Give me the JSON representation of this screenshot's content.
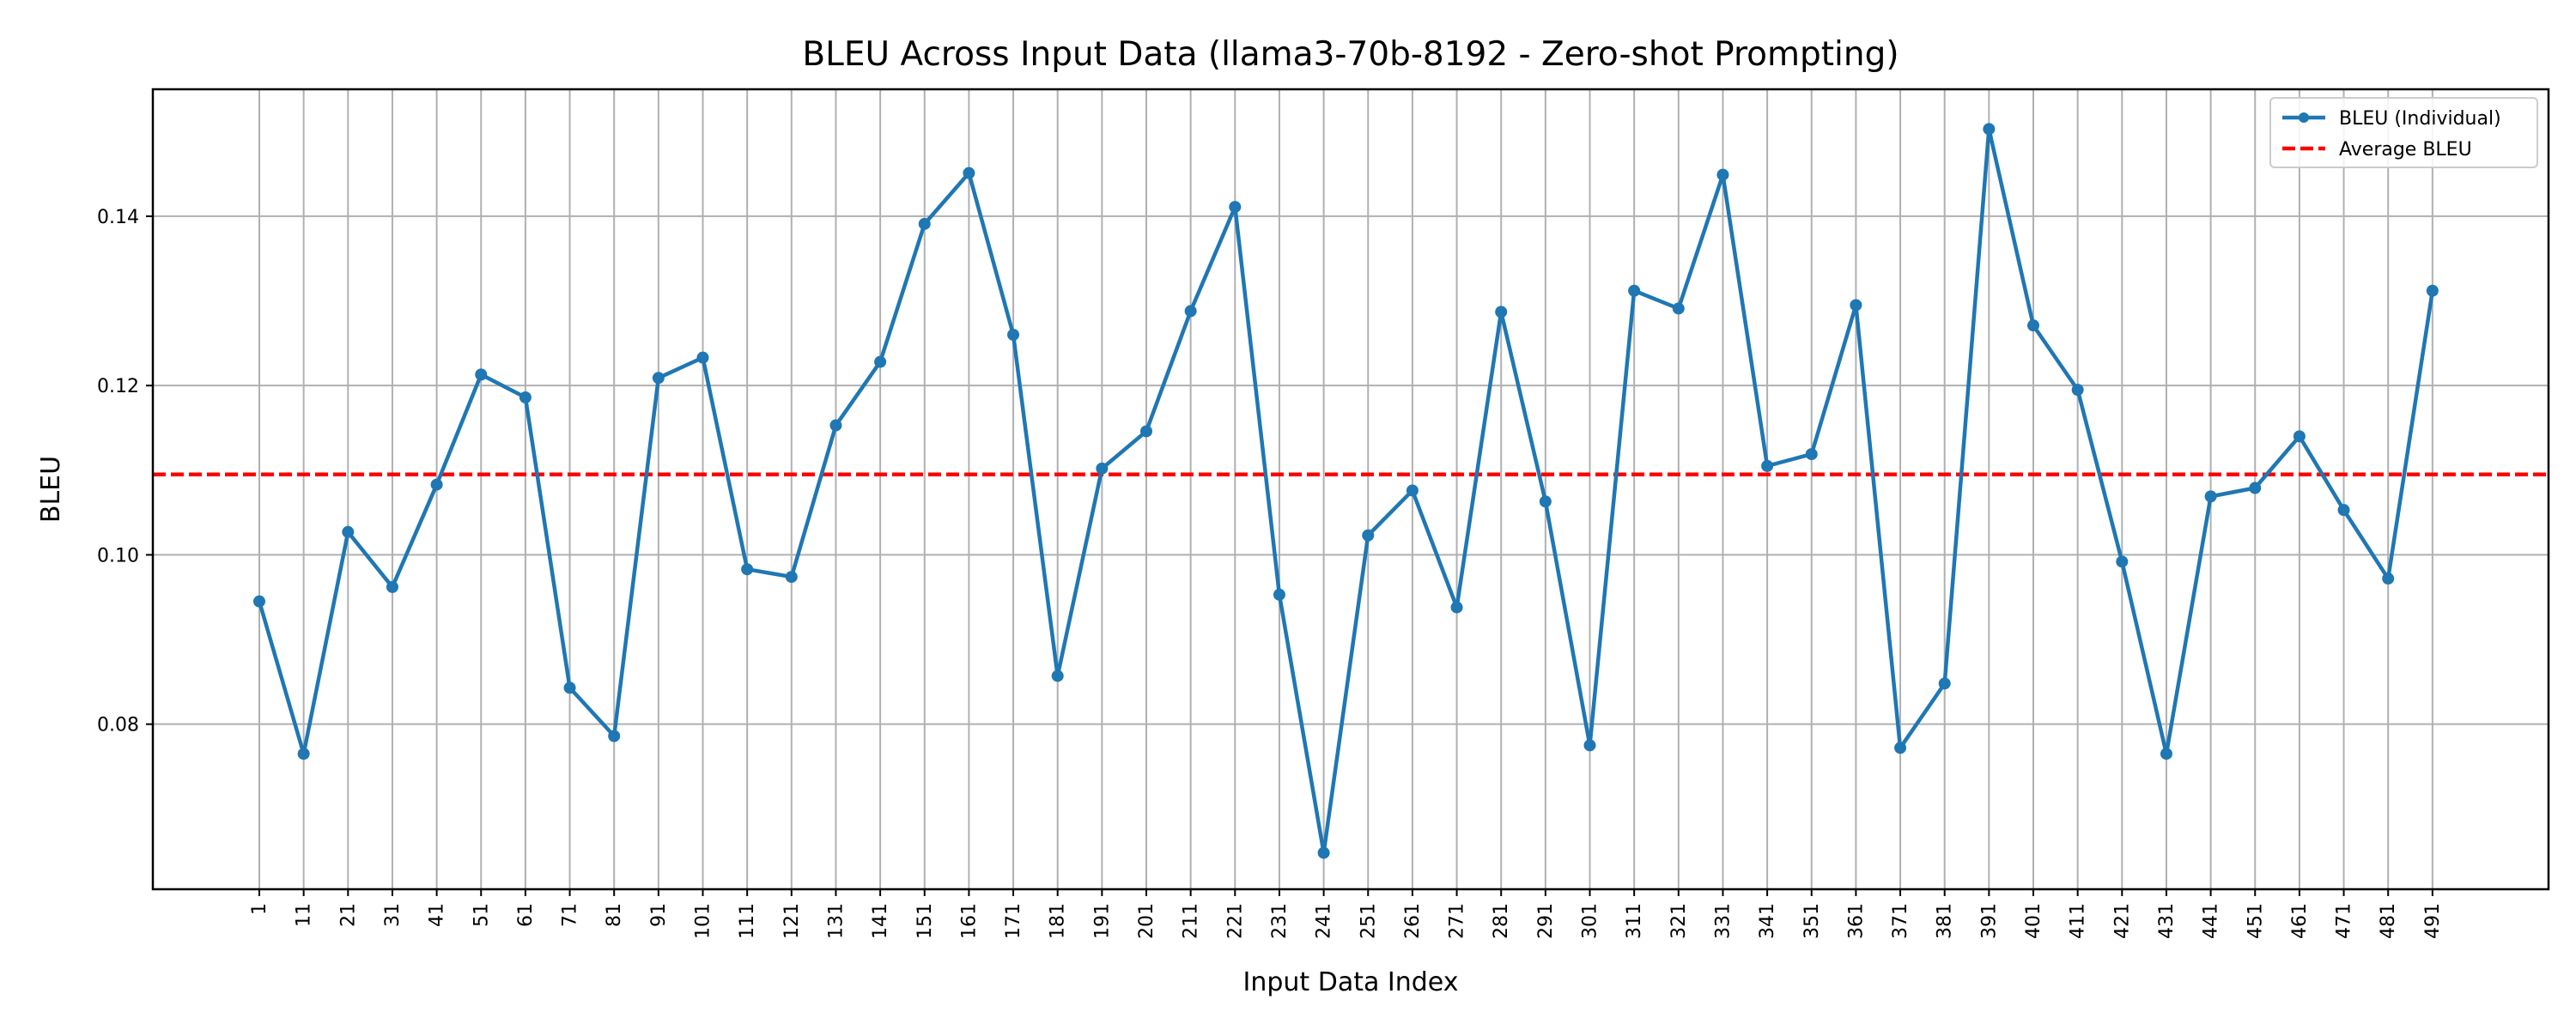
{
  "chart_data": {
    "type": "line",
    "title": "BLEU Across Input Data (llama3-70b-8192 - Zero-shot Prompting)",
    "xlabel": "Input Data Index",
    "ylabel": "BLEU",
    "x": [
      1,
      11,
      21,
      31,
      41,
      51,
      61,
      71,
      81,
      91,
      101,
      111,
      121,
      131,
      141,
      151,
      161,
      171,
      181,
      191,
      201,
      211,
      221,
      231,
      241,
      251,
      261,
      271,
      281,
      291,
      301,
      311,
      321,
      331,
      341,
      351,
      361,
      371,
      381,
      391,
      401,
      411,
      421,
      431,
      441,
      451,
      461,
      471,
      481,
      491
    ],
    "ylim": [
      0.0605,
      0.155
    ],
    "yticks": [
      0.08,
      0.1,
      0.12,
      0.14
    ],
    "ytick_labels": [
      "0.08",
      "0.10",
      "0.12",
      "0.14"
    ],
    "grid": true,
    "legend_position": "top-right",
    "series": [
      {
        "name": "BLEU (Individual)",
        "color": "#1f77b4",
        "marker": "circle",
        "values": [
          0.0945,
          0.0765,
          0.1027,
          0.0962,
          0.1083,
          0.1213,
          0.1186,
          0.0843,
          0.0786,
          0.1209,
          0.1233,
          0.0983,
          0.0974,
          0.1153,
          0.1228,
          0.1391,
          0.1451,
          0.126,
          0.0857,
          0.1102,
          0.1146,
          0.1288,
          0.1411,
          0.0953,
          0.0648,
          0.1023,
          0.1076,
          0.0938,
          0.1287,
          0.1063,
          0.0775,
          0.1312,
          0.1291,
          0.1449,
          0.1105,
          0.1119,
          0.1295,
          0.0772,
          0.0848,
          0.1503,
          0.1271,
          0.1195,
          0.0992,
          0.0765,
          0.1069,
          0.1079,
          0.114,
          0.1053,
          0.0972,
          0.1312
        ]
      },
      {
        "name": "Average BLEU",
        "color": "#ff0000",
        "style": "dashed",
        "value": 0.1095
      }
    ]
  }
}
